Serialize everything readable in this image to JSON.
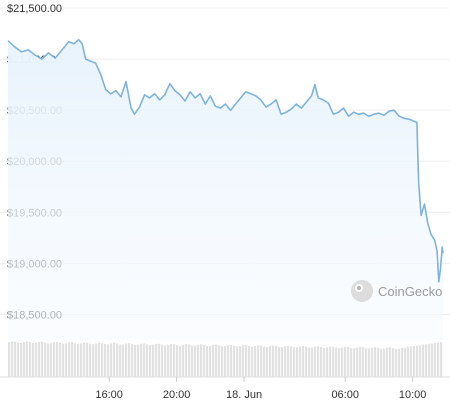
{
  "chart_data": {
    "type": "area",
    "title": "",
    "xlabel": "",
    "ylabel": "",
    "ylim": [
      18250,
      21500
    ],
    "y_ticks": [
      21500,
      21000,
      20500,
      20000,
      19500,
      19000,
      18500
    ],
    "y_tick_labels": [
      "$21,500.00",
      "$21,000.00",
      "$20,500.00",
      "$20,000.00",
      "$19,500.00",
      "$19,000.00",
      "$18,500.00"
    ],
    "x_tick_labels": [
      "16:00",
      "20:00",
      "18. Jun",
      "06:00",
      "10:00"
    ],
    "x_tick_hours": [
      16,
      20,
      24,
      30,
      34
    ],
    "xlim_hours": [
      10.0,
      35.8
    ],
    "grid": true,
    "colors": {
      "line": "#7fb3dd",
      "fill_top": "#e8f3fc",
      "grid": "#eeeeee",
      "volume": "#e2e2e2"
    },
    "series": [
      {
        "values": [
          [
            10.0,
            21180
          ],
          [
            10.4,
            21120
          ],
          [
            10.8,
            21070
          ],
          [
            11.2,
            21090
          ],
          [
            11.6,
            21040
          ],
          [
            12.0,
            21000
          ],
          [
            12.4,
            21060
          ],
          [
            12.8,
            21010
          ],
          [
            13.2,
            21090
          ],
          [
            13.6,
            21170
          ],
          [
            13.9,
            21150
          ],
          [
            14.2,
            21190
          ],
          [
            14.4,
            21150
          ],
          [
            14.6,
            21000
          ],
          [
            14.9,
            20980
          ],
          [
            15.2,
            20960
          ],
          [
            15.5,
            20850
          ],
          [
            15.8,
            20700
          ],
          [
            16.1,
            20660
          ],
          [
            16.4,
            20690
          ],
          [
            16.7,
            20630
          ],
          [
            17.0,
            20780
          ],
          [
            17.3,
            20520
          ],
          [
            17.5,
            20460
          ],
          [
            17.8,
            20530
          ],
          [
            18.1,
            20650
          ],
          [
            18.4,
            20620
          ],
          [
            18.7,
            20660
          ],
          [
            19.0,
            20600
          ],
          [
            19.3,
            20650
          ],
          [
            19.6,
            20760
          ],
          [
            19.9,
            20690
          ],
          [
            20.2,
            20650
          ],
          [
            20.5,
            20590
          ],
          [
            20.8,
            20680
          ],
          [
            21.1,
            20620
          ],
          [
            21.4,
            20660
          ],
          [
            21.7,
            20560
          ],
          [
            22.0,
            20640
          ],
          [
            22.3,
            20540
          ],
          [
            22.6,
            20520
          ],
          [
            22.9,
            20560
          ],
          [
            23.2,
            20500
          ],
          [
            23.5,
            20560
          ],
          [
            23.8,
            20620
          ],
          [
            24.1,
            20680
          ],
          [
            24.4,
            20660
          ],
          [
            24.7,
            20640
          ],
          [
            25.0,
            20600
          ],
          [
            25.3,
            20530
          ],
          [
            25.6,
            20560
          ],
          [
            25.9,
            20600
          ],
          [
            26.2,
            20460
          ],
          [
            26.5,
            20480
          ],
          [
            26.8,
            20510
          ],
          [
            27.1,
            20560
          ],
          [
            27.4,
            20520
          ],
          [
            27.7,
            20580
          ],
          [
            28.0,
            20640
          ],
          [
            28.2,
            20750
          ],
          [
            28.4,
            20620
          ],
          [
            28.7,
            20600
          ],
          [
            29.0,
            20570
          ],
          [
            29.3,
            20460
          ],
          [
            29.6,
            20480
          ],
          [
            29.9,
            20520
          ],
          [
            30.2,
            20440
          ],
          [
            30.5,
            20480
          ],
          [
            30.8,
            20460
          ],
          [
            31.1,
            20470
          ],
          [
            31.4,
            20440
          ],
          [
            31.7,
            20460
          ],
          [
            32.0,
            20470
          ],
          [
            32.3,
            20450
          ],
          [
            32.6,
            20490
          ],
          [
            32.9,
            20500
          ],
          [
            33.2,
            20440
          ],
          [
            33.5,
            20420
          ],
          [
            33.8,
            20410
          ],
          [
            34.1,
            20390
          ],
          [
            34.25,
            20380
          ],
          [
            34.35,
            19800
          ],
          [
            34.5,
            19470
          ],
          [
            34.7,
            19580
          ],
          [
            34.9,
            19390
          ],
          [
            35.1,
            19280
          ],
          [
            35.3,
            19230
          ],
          [
            35.45,
            19120
          ],
          [
            35.55,
            18820
          ],
          [
            35.65,
            18950
          ],
          [
            35.75,
            19160
          ],
          [
            35.8,
            19100
          ]
        ]
      }
    ]
  },
  "watermark": {
    "text": "CoinGecko",
    "icon": "gecko-logo-icon"
  }
}
